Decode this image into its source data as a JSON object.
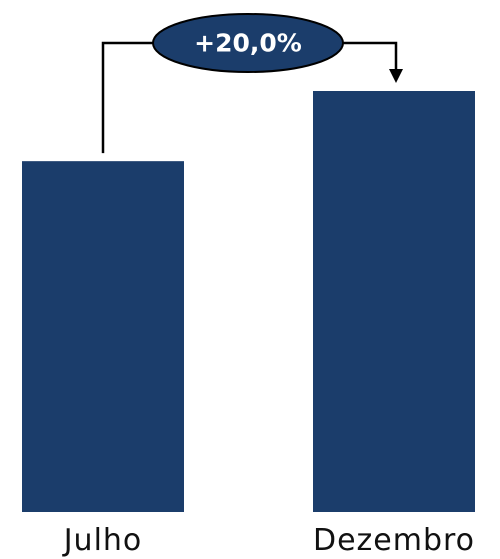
{
  "chart_data": {
    "type": "bar",
    "categories": [
      "Julho",
      "Dezembro"
    ],
    "values": [
      100,
      120
    ],
    "title": "",
    "xlabel": "",
    "ylabel": "",
    "ylim": [
      0,
      135
    ],
    "grid": false,
    "legend": "none",
    "bar_color": "#1b3d6b",
    "annotation": {
      "text": "+20,0%",
      "from": "Julho",
      "to": "Dezembro",
      "badge_fill": "#1b3d6b",
      "badge_stroke": "#000000",
      "connector_color": "#000000"
    }
  }
}
